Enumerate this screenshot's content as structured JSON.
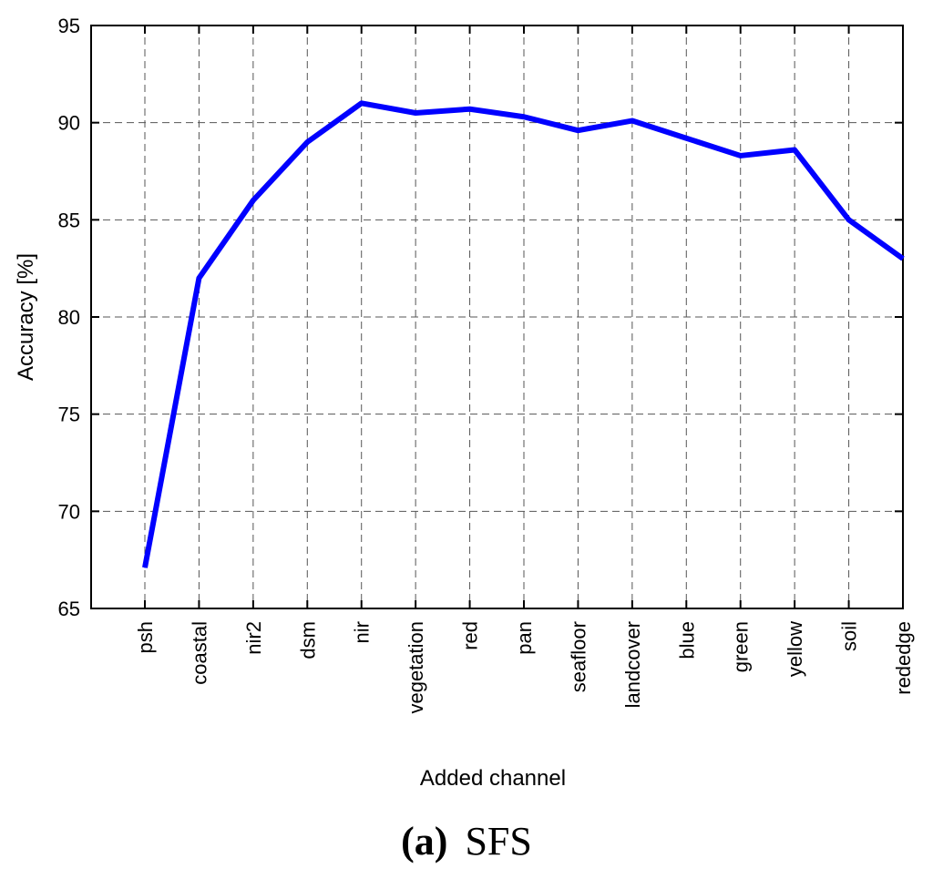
{
  "chart_data": {
    "type": "line",
    "categories": [
      "psh",
      "coastal",
      "nir2",
      "dsm",
      "nir",
      "vegetation",
      "red",
      "pan",
      "seafloor",
      "landcover",
      "blue",
      "green",
      "yellow",
      "soil",
      "rededge"
    ],
    "highlighted_categories": [
      "psh",
      "coastal",
      "nir2",
      "dsm",
      "nir",
      "landcover"
    ],
    "series": [
      {
        "values": [
          67.1,
          82.0,
          86.0,
          89.0,
          91.0,
          90.5,
          90.7,
          90.3,
          89.6,
          90.1,
          89.2,
          88.3,
          88.6,
          85.0,
          83.0
        ]
      }
    ],
    "xlabel": "Added channel",
    "ylabel": "Accuracy [%]",
    "ylim": [
      65,
      95
    ],
    "yticks": [
      65,
      70,
      75,
      80,
      85,
      90,
      95
    ],
    "grid": true,
    "colors": {
      "line": "#0000ff",
      "highlight_label": "#ff0000",
      "normal_label": "#000000",
      "grid": "#555555"
    }
  },
  "caption": {
    "letter": "(a)",
    "text": "SFS"
  }
}
